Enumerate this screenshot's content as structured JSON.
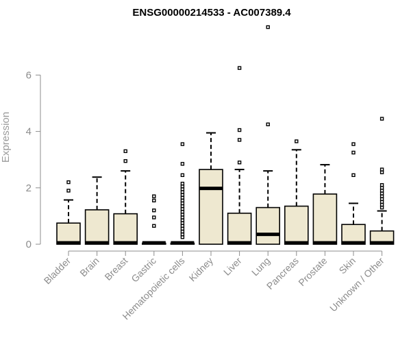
{
  "chart_data": {
    "type": "boxplot",
    "title": "ENSG00000214533 - AC007389.4",
    "ylabel": "Expression",
    "xlabel": "",
    "ylim": [
      0,
      7.8
    ],
    "yticks": [
      0,
      2,
      4,
      6
    ],
    "grid": false,
    "legend": "none",
    "colors": {
      "box_fill": "#eee8d0",
      "box_stroke": "#000000",
      "axis": "#8c8c8c"
    },
    "categories": [
      "Bladder",
      "Brain",
      "Breast",
      "Gastric",
      "Hematopoietic cells",
      "Kidney",
      "Liver",
      "Lung",
      "Pancreas",
      "Prostate",
      "Skin",
      "Unknown / Other"
    ],
    "boxes": [
      {
        "category": "Bladder",
        "q1": 0,
        "median": 0,
        "q3": 0.75,
        "whisker_low": 0,
        "whisker_high": 1.57,
        "outliers": [
          1.9,
          2.2
        ]
      },
      {
        "category": "Brain",
        "q1": 0,
        "median": 0,
        "q3": 1.22,
        "whisker_low": 0,
        "whisker_high": 2.38,
        "outliers": []
      },
      {
        "category": "Breast",
        "q1": 0,
        "median": 0,
        "q3": 1.08,
        "whisker_low": 0,
        "whisker_high": 2.6,
        "outliers": [
          2.95,
          3.3
        ]
      },
      {
        "category": "Gastric",
        "q1": 0,
        "median": 0,
        "q3": 0.03,
        "whisker_low": 0,
        "whisker_high": 0.03,
        "outliers": [
          0.65,
          0.95,
          1.2,
          1.55,
          1.7
        ]
      },
      {
        "category": "Hematopoietic cells",
        "q1": 0,
        "median": 0,
        "q3": 0.03,
        "whisker_low": 0,
        "whisker_high": 0.03,
        "outliers": [
          0.25,
          0.35,
          0.45,
          0.55,
          0.65,
          0.75,
          0.85,
          0.95,
          1.05,
          1.15,
          1.25,
          1.35,
          1.45,
          1.55,
          1.65,
          1.75,
          1.85,
          1.95,
          2.05,
          2.15,
          2.45,
          2.85,
          3.55
        ]
      },
      {
        "category": "Kidney",
        "q1": 0,
        "median": 1.98,
        "q3": 2.65,
        "whisker_low": 0,
        "whisker_high": 3.95,
        "outliers": []
      },
      {
        "category": "Liver",
        "q1": 0,
        "median": 0,
        "q3": 1.1,
        "whisker_low": 0,
        "whisker_high": 2.65,
        "outliers": [
          2.9,
          3.7,
          4.05,
          6.25
        ]
      },
      {
        "category": "Lung",
        "q1": 0,
        "median": 0.35,
        "q3": 1.3,
        "whisker_low": 0,
        "whisker_high": 2.6,
        "outliers": [
          4.25,
          7.7
        ]
      },
      {
        "category": "Pancreas",
        "q1": 0,
        "median": 0,
        "q3": 1.35,
        "whisker_low": 0,
        "whisker_high": 3.35,
        "outliers": [
          3.65
        ]
      },
      {
        "category": "Prostate",
        "q1": 0,
        "median": 0,
        "q3": 1.78,
        "whisker_low": 0,
        "whisker_high": 2.82,
        "outliers": []
      },
      {
        "category": "Skin",
        "q1": 0,
        "median": 0,
        "q3": 0.7,
        "whisker_low": 0,
        "whisker_high": 1.45,
        "outliers": [
          2.45,
          3.25,
          3.55
        ]
      },
      {
        "category": "Unknown / Other",
        "q1": 0,
        "median": 0,
        "q3": 0.47,
        "whisker_low": 0,
        "whisker_high": 1.18,
        "outliers": [
          1.3,
          1.4,
          1.5,
          1.6,
          1.7,
          1.8,
          1.9,
          2.0,
          2.1,
          2.55,
          2.65,
          4.45
        ]
      }
    ]
  }
}
